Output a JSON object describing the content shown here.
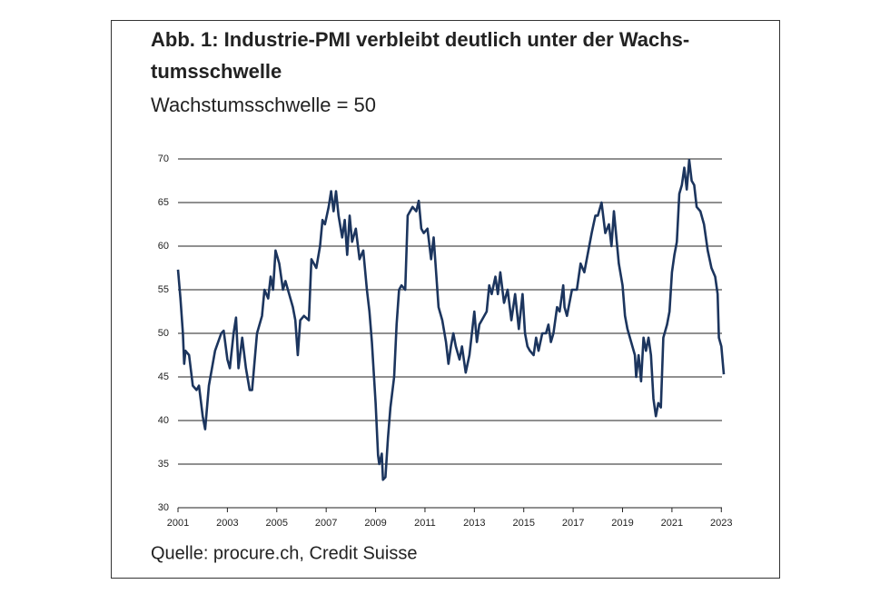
{
  "chart_data": {
    "type": "line",
    "title": [
      "Abb. 1: Industrie-PMI verbleibt deutlich unter der Wachs-",
      "tumsschwelle"
    ],
    "subtitle": "Wachstumsschwelle = 50",
    "source": "Quelle: procure.ch, Credit Suisse",
    "x": [
      2001.0,
      2001.1,
      2001.2,
      2001.25,
      2001.3,
      2001.45,
      2001.6,
      2001.75,
      2001.85,
      2002.0,
      2002.1,
      2002.25,
      2002.5,
      2002.75,
      2002.85,
      2003.0,
      2003.1,
      2003.25,
      2003.35,
      2003.45,
      2003.6,
      2003.75,
      2003.9,
      2004.0,
      2004.2,
      2004.4,
      2004.5,
      2004.65,
      2004.75,
      2004.85,
      2004.95,
      2005.1,
      2005.25,
      2005.35,
      2005.5,
      2005.65,
      2005.75,
      2005.85,
      2005.95,
      2006.1,
      2006.3,
      2006.4,
      2006.6,
      2006.75,
      2006.85,
      2006.95,
      2007.1,
      2007.2,
      2007.3,
      2007.4,
      2007.5,
      2007.65,
      2007.75,
      2007.85,
      2007.95,
      2008.05,
      2008.2,
      2008.35,
      2008.5,
      2008.65,
      2008.75,
      2008.85,
      2009.0,
      2009.1,
      2009.15,
      2009.25,
      2009.3,
      2009.4,
      2009.5,
      2009.6,
      2009.75,
      2009.85,
      2009.95,
      2010.05,
      2010.2,
      2010.3,
      2010.5,
      2010.65,
      2010.75,
      2010.85,
      2010.95,
      2011.1,
      2011.25,
      2011.35,
      2011.45,
      2011.55,
      2011.7,
      2011.85,
      2011.95,
      2012.05,
      2012.15,
      2012.25,
      2012.4,
      2012.5,
      2012.65,
      2012.8,
      2012.9,
      2013.0,
      2013.1,
      2013.2,
      2013.3,
      2013.5,
      2013.6,
      2013.7,
      2013.85,
      2013.95,
      2014.05,
      2014.2,
      2014.35,
      2014.5,
      2014.65,
      2014.8,
      2014.95,
      2015.05,
      2015.15,
      2015.25,
      2015.4,
      2015.5,
      2015.6,
      2015.75,
      2015.9,
      2016.0,
      2016.1,
      2016.2,
      2016.35,
      2016.45,
      2016.6,
      2016.65,
      2016.75,
      2016.95,
      2017.15,
      2017.3,
      2017.45,
      2017.55,
      2017.75,
      2017.9,
      2018.0,
      2018.15,
      2018.3,
      2018.45,
      2018.55,
      2018.65,
      2018.75,
      2018.85,
      2019.0,
      2019.1,
      2019.2,
      2019.35,
      2019.5,
      2019.55,
      2019.65,
      2019.75,
      2019.85,
      2019.95,
      2020.05,
      2020.15,
      2020.25,
      2020.35,
      2020.45,
      2020.55,
      2020.65,
      2020.8,
      2020.9,
      2021.0,
      2021.1,
      2021.2,
      2021.3,
      2021.4,
      2021.5,
      2021.6,
      2021.7,
      2021.8,
      2021.9,
      2022.0,
      2022.15,
      2022.3,
      2022.45,
      2022.6,
      2022.75,
      2022.85,
      2022.9,
      2023.0,
      2023.1
    ],
    "series": [
      {
        "color": "#1c355e",
        "values": [
          57.3,
          54,
          50,
          46.5,
          48,
          47.5,
          44,
          43.5,
          44,
          40.5,
          39,
          44,
          48,
          50,
          50.3,
          47,
          46,
          50,
          51.8,
          46,
          49.5,
          46,
          43.5,
          43.5,
          50,
          52,
          55,
          54,
          56.5,
          55,
          59.5,
          58,
          55,
          56,
          54.5,
          53,
          51.5,
          47.5,
          51.5,
          52,
          51.5,
          58.5,
          57.5,
          60,
          63,
          62.5,
          64.5,
          66.3,
          64,
          66.3,
          63.5,
          61,
          63,
          59,
          63.5,
          60.5,
          62,
          58.5,
          59.5,
          55,
          52.5,
          49,
          42,
          36,
          35,
          36.2,
          33.2,
          33.5,
          38,
          41.5,
          45,
          51,
          55,
          55.5,
          55,
          63.5,
          64.5,
          64,
          65.2,
          62,
          61.5,
          62,
          58.5,
          61,
          57,
          53,
          51.5,
          49,
          46.5,
          48.5,
          50,
          48.5,
          47,
          48.5,
          45.5,
          47.5,
          50,
          52.5,
          49,
          51,
          51.5,
          52.5,
          55.5,
          54.5,
          56.5,
          54.5,
          57,
          53.5,
          55,
          51.5,
          54.5,
          50.5,
          54.5,
          50,
          48.5,
          48,
          47.5,
          49.5,
          48,
          50,
          50,
          51,
          49,
          50,
          53,
          52.5,
          55.5,
          53,
          52,
          55,
          55,
          58,
          57,
          58.5,
          61.5,
          63.5,
          63.5,
          65,
          61.5,
          62.5,
          60,
          64,
          61,
          58,
          55.5,
          52,
          50.5,
          49,
          47.5,
          45,
          47.5,
          44.5,
          49.5,
          48,
          49.5,
          47.5,
          42.5,
          40.5,
          42,
          41.5,
          49.5,
          51,
          52.5,
          57,
          59,
          60.5,
          66,
          67,
          69,
          66.5,
          69.9,
          67.5,
          67,
          64.5,
          64,
          62.5,
          59.5,
          57.5,
          56.5,
          54.5,
          49.5,
          48.5,
          45.3
        ]
      }
    ],
    "xlim": [
      2001,
      2023.1
    ],
    "ylim": [
      30,
      70
    ],
    "xticks": [
      2001,
      2003,
      2005,
      2007,
      2009,
      2011,
      2013,
      2015,
      2017,
      2019,
      2021,
      2023
    ],
    "yticks": [
      30,
      35,
      40,
      45,
      50,
      55,
      60,
      65,
      70
    ],
    "grid": true
  }
}
